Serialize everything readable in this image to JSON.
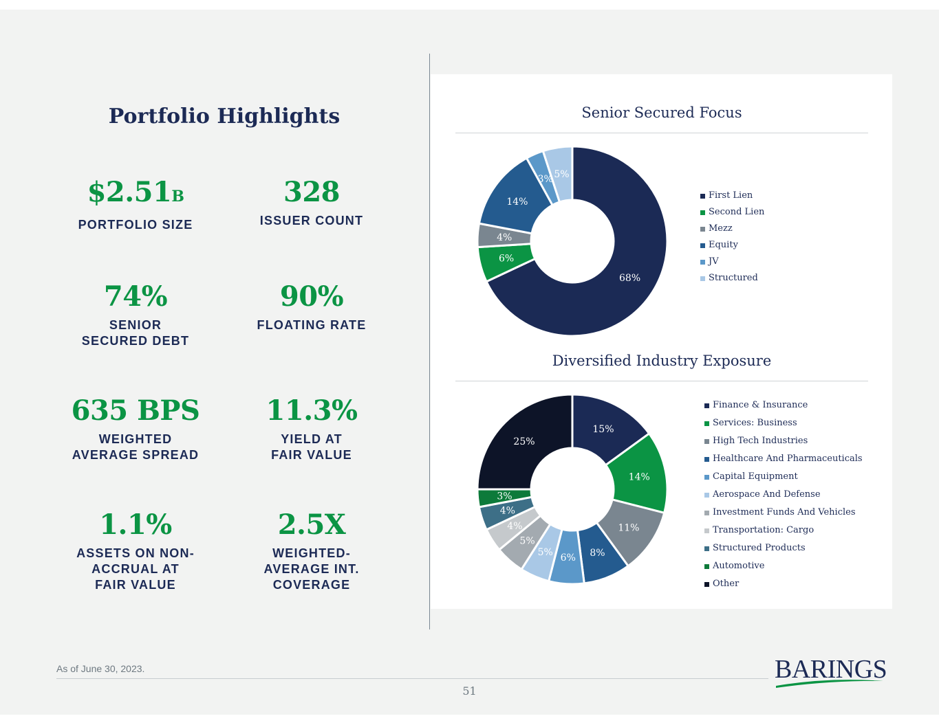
{
  "header": {
    "title": "Portfolio Highlights"
  },
  "metrics": [
    {
      "value": "$2.51",
      "suffix": "B",
      "label": "PORTFOLIO SIZE"
    },
    {
      "value": "328",
      "label": "ISSUER COUNT"
    },
    {
      "value": "74%",
      "label": "SENIOR\nSECURED DEBT"
    },
    {
      "value": "90%",
      "label": "FLOATING RATE"
    },
    {
      "value": "635 BPS",
      "label": "WEIGHTED\nAVERAGE SPREAD"
    },
    {
      "value": "11.3%",
      "label": "YIELD AT\nFAIR VALUE"
    },
    {
      "value": "1.1%",
      "label": "ASSETS ON NON-\nACCRUAL AT\nFAIR VALUE"
    },
    {
      "value": "2.5X",
      "label": "WEIGHTED-\nAVERAGE INT.\nCOVERAGE"
    }
  ],
  "chart_data": [
    {
      "type": "pie",
      "donut": true,
      "title": "Senior Secured Focus",
      "categories": [
        "First Lien",
        "Second Lien",
        "Mezz",
        "Equity",
        "JV",
        "Structured"
      ],
      "values": [
        68,
        6,
        4,
        14,
        3,
        5
      ],
      "labels": [
        "68%",
        "6%",
        "4%",
        "14%",
        "3%",
        "5%"
      ],
      "colors": [
        "#1b2a55",
        "#0b9444",
        "#7a8690",
        "#245b8f",
        "#5b98c9",
        "#a9c8e6"
      ],
      "legend_position": "right"
    },
    {
      "type": "pie",
      "donut": true,
      "title": "Diversified Industry Exposure",
      "categories": [
        "Finance & Insurance",
        "Services: Business",
        "High Tech Industries",
        "Healthcare And Pharmaceuticals",
        "Capital Equipment",
        "Aerospace And Defense",
        "Investment Funds And Vehicles",
        "Transportation: Cargo",
        "Structured Products",
        "Automotive",
        "Other"
      ],
      "values": [
        15,
        14,
        11,
        8,
        6,
        5,
        5,
        4,
        4,
        3,
        25
      ],
      "labels": [
        "15%",
        "14%",
        "11%",
        "8%",
        "6%",
        "5%",
        "5%",
        "4%",
        "4%",
        "3%",
        "25%"
      ],
      "colors": [
        "#1b2a55",
        "#0b9444",
        "#7a8690",
        "#245b8f",
        "#5b98c9",
        "#a9c8e6",
        "#a3aab0",
        "#c5c9cc",
        "#3d6f87",
        "#0d7a3a",
        "#0d1428"
      ],
      "legend_position": "right"
    }
  ],
  "footer": {
    "as_of": "As of June 30, 2023.",
    "page_number": "51"
  },
  "logo": {
    "text": "BARINGS"
  },
  "colors": {
    "navy": "#1c2a55",
    "green": "#0b9444",
    "background": "#f2f3f2"
  }
}
